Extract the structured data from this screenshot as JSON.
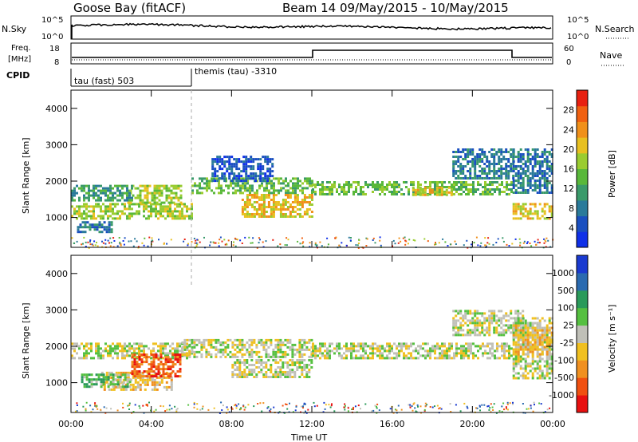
{
  "header": {
    "station": "Goose Bay (fitACF)",
    "beam_date": "Beam 14 09/May/2015 - 10/May/2015"
  },
  "top_panels": {
    "nsky_label": "N.Sky",
    "nsky_ticks": [
      "10^5",
      "10^0"
    ],
    "nsearch_label": "N.Search",
    "nsearch_ticks": [
      "10^5",
      "10^0"
    ],
    "freq_label_line1": "Freq.",
    "freq_label_line2": "[MHz]",
    "freq_ticks": [
      "18",
      "8"
    ],
    "nave_label": "Nave",
    "nave_ticks": [
      "60",
      "0"
    ],
    "cpid_label": "CPID",
    "cpid_1": "tau (fast) 503",
    "cpid_2": "themis (tau) -3310"
  },
  "chart_data": [
    {
      "type": "heatmap",
      "name": "power",
      "ylabel": "Slant Range [km]",
      "xlabel": "",
      "ylim": [
        180,
        4500
      ],
      "xlim": [
        0,
        24
      ],
      "yticks": [
        "1000",
        "2000",
        "3000",
        "4000"
      ],
      "colorbar_label": "Power [dB]",
      "colorbar_ticks": [
        "4",
        "8",
        "12",
        "16",
        "20",
        "24",
        "28"
      ],
      "colors": [
        "#1030e8",
        "#1a4fc0",
        "#2a7a9a",
        "#3a9a6a",
        "#59b83a",
        "#9acc30",
        "#e8c020",
        "#f0901a",
        "#f06010",
        "#e82010"
      ],
      "bands": [
        {
          "t0": 0,
          "t1": 6,
          "r0": 1000,
          "r1": 1400,
          "level": 5
        },
        {
          "t0": 2.8,
          "t1": 5.5,
          "r0": 1400,
          "r1": 1900,
          "level": 5
        },
        {
          "t0": 0,
          "t1": 3,
          "r0": 1500,
          "r1": 1900,
          "level": 3
        },
        {
          "t0": 0.3,
          "t1": 2,
          "r0": 580,
          "r1": 900,
          "level": 2
        },
        {
          "t0": 6,
          "t1": 12,
          "r0": 1700,
          "r1": 2100,
          "level": 4
        },
        {
          "t0": 8.5,
          "t1": 12,
          "r0": 1050,
          "r1": 1650,
          "level": 6
        },
        {
          "t0": 12,
          "t1": 22,
          "r0": 1650,
          "r1": 2000,
          "level": 4
        },
        {
          "t0": 17,
          "t1": 19,
          "r0": 1600,
          "r1": 1850,
          "level": 6
        },
        {
          "t0": 19,
          "t1": 22,
          "r0": 2100,
          "r1": 2900,
          "level": 2
        },
        {
          "t0": 22,
          "t1": 24,
          "r0": 1000,
          "r1": 1400,
          "level": 6
        },
        {
          "t0": 22,
          "t1": 24,
          "r0": 1700,
          "r1": 2900,
          "level": 2
        },
        {
          "t0": 7,
          "t1": 10,
          "r0": 2000,
          "r1": 2700,
          "level": 1
        }
      ]
    },
    {
      "type": "heatmap",
      "name": "velocity",
      "ylabel": "Slant Range [km]",
      "xlabel": "Time UT",
      "ylim": [
        180,
        4500
      ],
      "xlim": [
        0,
        24
      ],
      "yticks": [
        "1000",
        "2000",
        "3000",
        "4000"
      ],
      "xticks": [
        "00:00",
        "04:00",
        "08:00",
        "12:00",
        "16:00",
        "20:00",
        "00:00"
      ],
      "colorbar_label": "Velocity [m s⁻¹]",
      "colorbar_ticks": [
        "1000",
        "500",
        "100",
        "25",
        "-25",
        "-100",
        "-500",
        "-1000"
      ],
      "colors": [
        "#1a3ad0",
        "#2a6ab0",
        "#2a9a5a",
        "#55c040",
        "#c0c0b8",
        "#f0c020",
        "#f09020",
        "#f05010",
        "#e81010"
      ],
      "bands": [
        {
          "t0": 0,
          "t1": 6,
          "r0": 1700,
          "r1": 2100,
          "level": 4
        },
        {
          "t0": 1.5,
          "t1": 5,
          "r0": 800,
          "r1": 1300,
          "level": 5
        },
        {
          "t0": 3,
          "t1": 5.5,
          "r0": 1200,
          "r1": 1800,
          "level": 7
        },
        {
          "t0": 0.5,
          "t1": 3,
          "r0": 900,
          "r1": 1250,
          "level": 3
        },
        {
          "t0": 5.5,
          "t1": 12,
          "r0": 1700,
          "r1": 2200,
          "level": 4
        },
        {
          "t0": 8,
          "t1": 12,
          "r0": 1150,
          "r1": 1650,
          "level": 4
        },
        {
          "t0": 12,
          "t1": 22,
          "r0": 1700,
          "r1": 2100,
          "level": 4
        },
        {
          "t0": 19,
          "t1": 22.5,
          "r0": 2300,
          "r1": 3000,
          "level": 4
        },
        {
          "t0": 22,
          "t1": 24,
          "r0": 1100,
          "r1": 2800,
          "level": 4
        },
        {
          "t0": 22,
          "t1": 24,
          "r0": 1800,
          "r1": 2600,
          "level": 5
        }
      ]
    }
  ],
  "x_axis": {
    "ticks": [
      "00:00",
      "04:00",
      "08:00",
      "12:00",
      "16:00",
      "20:00",
      "00:00"
    ],
    "label": "Time UT"
  }
}
